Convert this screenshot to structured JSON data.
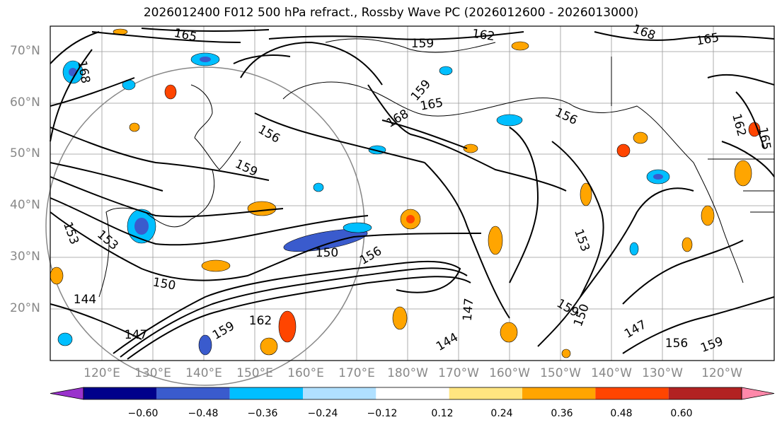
{
  "title": "2026012400 F012 500 hPa refract., Rossby Wave PC (2026012600 - 2026013000)",
  "lat_labels": [
    "70°N",
    "60°N",
    "50°N",
    "40°N",
    "30°N",
    "20°N"
  ],
  "lon_labels": [
    "120°E",
    "130°E",
    "140°E",
    "150°E",
    "160°E",
    "170°E",
    "180°W",
    "170°W",
    "160°W",
    "150°W",
    "140°W",
    "130°W",
    "120°W"
  ],
  "contour_labels": [
    "165",
    "162",
    "159",
    "168",
    "165",
    "168",
    "156",
    "159",
    "165",
    "159",
    "156",
    "168",
    "153",
    "150",
    "150",
    "144",
    "147",
    "159",
    "162",
    "156",
    "147",
    "144",
    "153",
    "150",
    "159",
    "147",
    "156",
    "159",
    "162",
    "165",
    "153"
  ],
  "colorbar": {
    "colors": [
      "#9932cc",
      "#00008b",
      "#3a5bcd",
      "#00bfff",
      "#b0e0ff",
      "#ffffff",
      "#ffe580",
      "#ffa500",
      "#ff4500",
      "#b22222",
      "#ff88aa"
    ],
    "ticks": [
      "−0.60",
      "−0.48",
      "−0.36",
      "−0.24",
      "−0.12",
      "0.12",
      "0.24",
      "0.36",
      "0.48",
      "0.60"
    ]
  }
}
